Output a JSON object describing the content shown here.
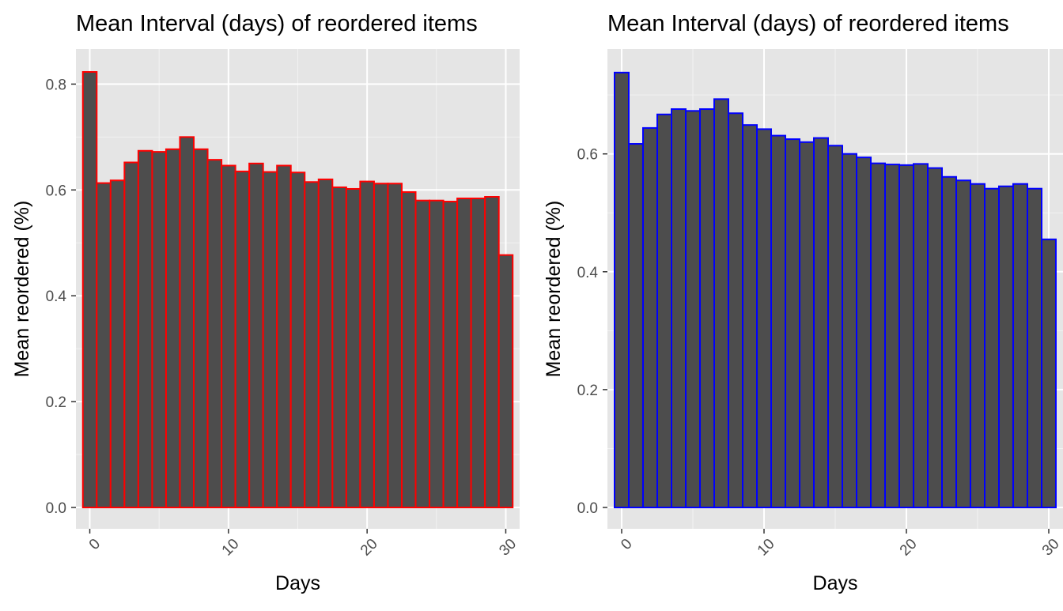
{
  "chart_data": [
    {
      "type": "bar",
      "title": "Mean Interval (days) of reordered items",
      "xlabel": "Days",
      "ylabel": "Mean reordered (%)",
      "bar_outline": "#ff0000",
      "bar_fill": "#4d4d4d",
      "panel_bg": "#e5e5e5",
      "grid": true,
      "xlim": [
        -1,
        31
      ],
      "ylim": [
        0,
        0.85
      ],
      "x_ticks": [
        0,
        10,
        20,
        30
      ],
      "x_tick_labels": [
        "0",
        "10",
        "20",
        "30"
      ],
      "y_ticks": [
        0,
        0.2,
        0.4,
        0.6,
        0.8
      ],
      "y_tick_labels": [
        "0.0",
        "0.2",
        "0.4",
        "0.6",
        "0.8"
      ],
      "x": [
        0,
        1,
        2,
        3,
        4,
        5,
        6,
        7,
        8,
        9,
        10,
        11,
        12,
        13,
        14,
        15,
        16,
        17,
        18,
        19,
        20,
        21,
        22,
        23,
        24,
        25,
        26,
        27,
        28,
        29,
        30
      ],
      "values": [
        0.823,
        0.613,
        0.618,
        0.652,
        0.674,
        0.672,
        0.677,
        0.7,
        0.677,
        0.657,
        0.646,
        0.635,
        0.65,
        0.634,
        0.646,
        0.633,
        0.615,
        0.62,
        0.605,
        0.602,
        0.616,
        0.612,
        0.612,
        0.596,
        0.58,
        0.58,
        0.578,
        0.584,
        0.584,
        0.587,
        0.477
      ]
    },
    {
      "type": "bar",
      "title": "Mean Interval (days) of reordered items",
      "xlabel": "Days",
      "ylabel": "Mean reordered (%)",
      "bar_outline": "#0000ff",
      "bar_fill": "#4d4d4d",
      "panel_bg": "#e5e5e5",
      "grid": true,
      "xlim": [
        -1,
        31
      ],
      "ylim": [
        0,
        0.75
      ],
      "x_ticks": [
        0,
        10,
        20,
        30
      ],
      "x_tick_labels": [
        "0",
        "10",
        "20",
        "30"
      ],
      "y_ticks": [
        0,
        0.2,
        0.4,
        0.6
      ],
      "y_tick_labels": [
        "0.0",
        "0.2",
        "0.4",
        "0.6"
      ],
      "x": [
        0,
        1,
        2,
        3,
        4,
        5,
        6,
        7,
        8,
        9,
        10,
        11,
        12,
        13,
        14,
        15,
        16,
        17,
        18,
        19,
        20,
        21,
        22,
        23,
        24,
        25,
        26,
        27,
        28,
        29,
        30
      ],
      "values": [
        0.738,
        0.617,
        0.644,
        0.667,
        0.676,
        0.673,
        0.676,
        0.693,
        0.669,
        0.649,
        0.642,
        0.631,
        0.625,
        0.62,
        0.627,
        0.614,
        0.6,
        0.594,
        0.584,
        0.582,
        0.581,
        0.583,
        0.576,
        0.561,
        0.555,
        0.549,
        0.541,
        0.545,
        0.549,
        0.541,
        0.455
      ]
    }
  ]
}
